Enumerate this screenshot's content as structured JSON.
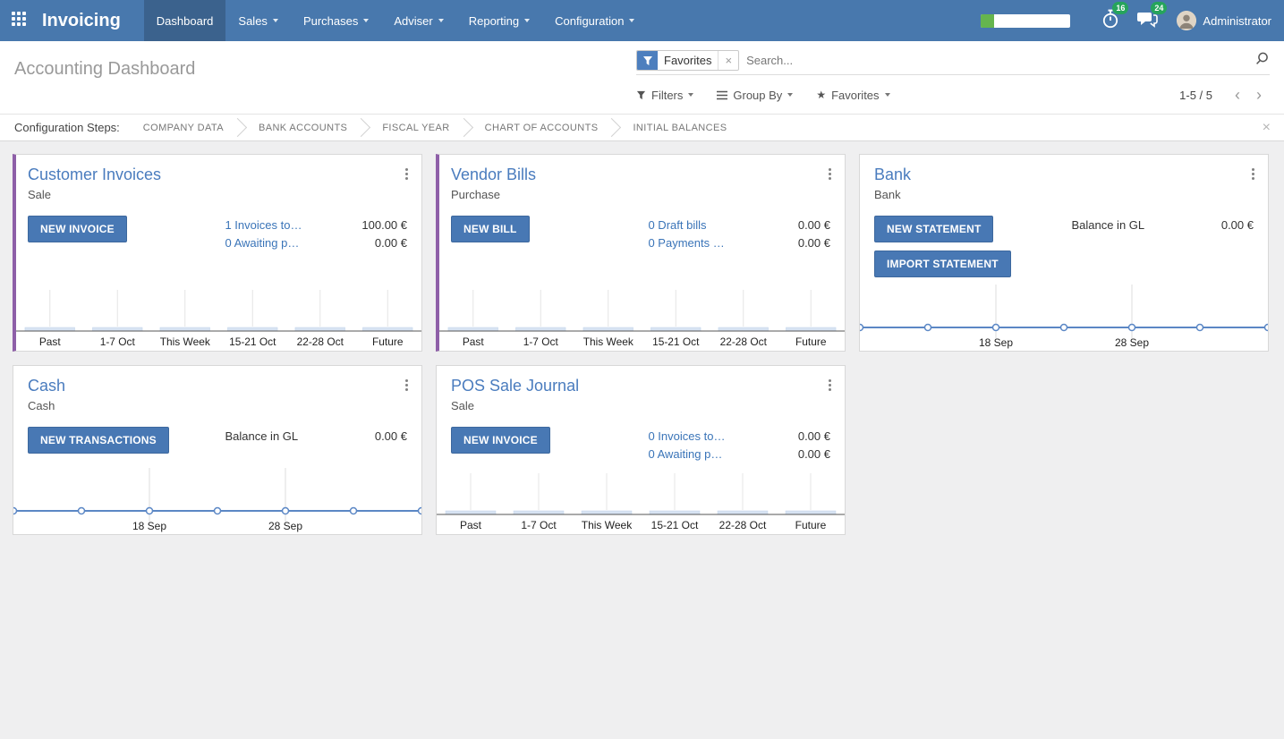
{
  "navbar": {
    "brand": "Invoicing",
    "menus": [
      {
        "label": "Dashboard",
        "active": true,
        "dropdown": false
      },
      {
        "label": "Sales",
        "active": false,
        "dropdown": true
      },
      {
        "label": "Purchases",
        "active": false,
        "dropdown": true
      },
      {
        "label": "Adviser",
        "active": false,
        "dropdown": true
      },
      {
        "label": "Reporting",
        "active": false,
        "dropdown": true
      },
      {
        "label": "Configuration",
        "active": false,
        "dropdown": true
      }
    ],
    "systray": {
      "progress_pct": 15,
      "activity_badge": "16",
      "messages_badge": "24",
      "user_name": "Administrator"
    }
  },
  "control_panel": {
    "title": "Accounting Dashboard",
    "search": {
      "facet_label": "Favorites",
      "placeholder": "Search...",
      "value": ""
    },
    "filter_buttons": {
      "filters": "Filters",
      "group_by": "Group By",
      "favorites": "Favorites"
    },
    "pager": {
      "value": "1-5 / 5"
    }
  },
  "config_steps": {
    "label": "Configuration Steps:",
    "steps": [
      "COMPANY DATA",
      "BANK ACCOUNTS",
      "FISCAL YEAR",
      "CHART OF ACCOUNTS",
      "INITIAL BALANCES"
    ]
  },
  "cards": [
    {
      "title": "Customer Invoices",
      "subtitle": "Sale",
      "accent": true,
      "buttons": [
        "NEW INVOICE"
      ],
      "rows": [
        {
          "label": "1 Invoices to…",
          "amount": "100.00 €",
          "link": true
        },
        {
          "label": "0 Awaiting p…",
          "amount": "0.00 €",
          "link": true
        }
      ],
      "chart": {
        "type": "bar",
        "categories": [
          "Past",
          "1-7 Oct",
          "This Week",
          "15-21 Oct",
          "22-28 Oct",
          "Future"
        ],
        "values": [
          0,
          0,
          0,
          0,
          0,
          0
        ]
      }
    },
    {
      "title": "Vendor Bills",
      "subtitle": "Purchase",
      "accent": true,
      "buttons": [
        "NEW BILL"
      ],
      "rows": [
        {
          "label": "0 Draft bills",
          "amount": "0.00 €",
          "link": true
        },
        {
          "label": "0 Payments …",
          "amount": "0.00 €",
          "link": true
        }
      ],
      "chart": {
        "type": "bar",
        "categories": [
          "Past",
          "1-7 Oct",
          "This Week",
          "15-21 Oct",
          "22-28 Oct",
          "Future"
        ],
        "values": [
          0,
          0,
          0,
          0,
          0,
          0
        ]
      }
    },
    {
      "title": "Bank",
      "subtitle": "Bank",
      "accent": false,
      "buttons": [
        "NEW STATEMENT",
        "IMPORT STATEMENT"
      ],
      "rows": [
        {
          "label": "Balance in GL",
          "amount": "0.00 €",
          "link": false
        }
      ],
      "chart": {
        "type": "line",
        "x_labels": [
          "18 Sep",
          "28 Sep"
        ],
        "values": [
          0,
          0,
          0,
          0,
          0,
          0,
          0
        ]
      }
    },
    {
      "title": "Cash",
      "subtitle": "Cash",
      "accent": false,
      "buttons": [
        "NEW TRANSACTIONS"
      ],
      "rows": [
        {
          "label": "Balance in GL",
          "amount": "0.00 €",
          "link": false
        }
      ],
      "chart": {
        "type": "line",
        "x_labels": [
          "18 Sep",
          "28 Sep"
        ],
        "values": [
          0,
          0,
          0,
          0,
          0,
          0,
          0
        ]
      }
    },
    {
      "title": "POS Sale Journal",
      "subtitle": "Sale",
      "accent": false,
      "buttons": [
        "NEW INVOICE"
      ],
      "rows": [
        {
          "label": "0 Invoices to…",
          "amount": "0.00 €",
          "link": true
        },
        {
          "label": "0 Awaiting p…",
          "amount": "0.00 €",
          "link": true
        }
      ],
      "chart": {
        "type": "bar",
        "categories": [
          "Past",
          "1-7 Oct",
          "This Week",
          "15-21 Oct",
          "22-28 Oct",
          "Future"
        ],
        "values": [
          0,
          0,
          0,
          0,
          0,
          0
        ]
      }
    }
  ],
  "colors": {
    "navbar": "#4878ad",
    "navbar_active": "#3c699c",
    "accent_purple": "#8e5fa8",
    "button_blue": "#4878b4",
    "link_blue": "#3a74b8",
    "card_title_blue": "#4a7cbe",
    "badge_green": "#26a45c",
    "progress_green": "#65b54e",
    "chart_line_blue": "#5b87c5",
    "chart_bar_fill": "#d7e3f2"
  }
}
